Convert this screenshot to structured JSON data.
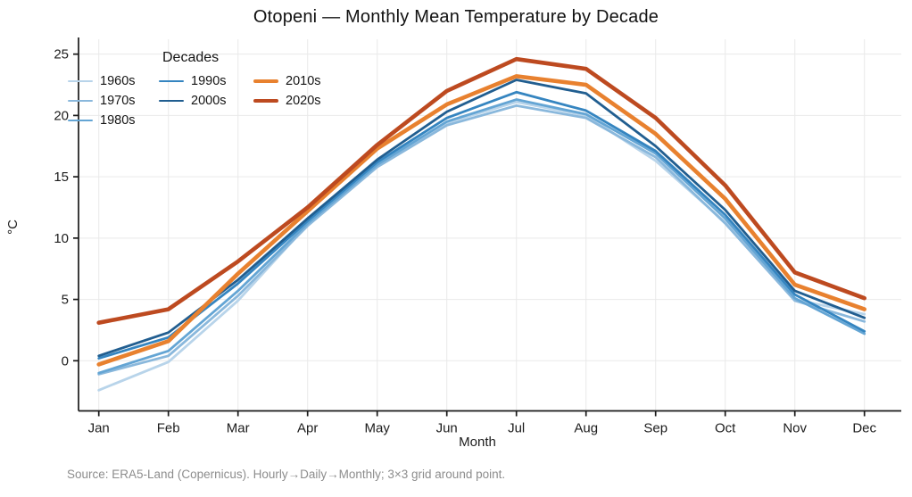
{
  "chart_data": {
    "type": "line",
    "title": "Otopeni — Monthly Mean Temperature by Decade",
    "xlabel": "Month",
    "ylabel": "°C",
    "categories": [
      "Jan",
      "Feb",
      "Mar",
      "Apr",
      "May",
      "Jun",
      "Jul",
      "Aug",
      "Sep",
      "Oct",
      "Nov",
      "Dec"
    ],
    "yticks": [
      0,
      5,
      10,
      15,
      20,
      25
    ],
    "ylim": [
      -4.1,
      26.2
    ],
    "grid": true,
    "legend_position": "upper-left-inside",
    "series": [
      {
        "name": "1960s",
        "color": "#b8d4ea",
        "width": 2.8,
        "values": [
          -2.4,
          -0.1,
          4.9,
          11.1,
          15.9,
          19.4,
          21.1,
          20.0,
          16.3,
          11.3,
          5.0,
          3.8
        ]
      },
      {
        "name": "1970s",
        "color": "#8ab8dc",
        "width": 2.8,
        "values": [
          -1.1,
          0.4,
          5.3,
          11.0,
          15.8,
          19.2,
          20.8,
          19.8,
          16.6,
          11.2,
          4.9,
          3.2
        ]
      },
      {
        "name": "1980s",
        "color": "#64a5d4",
        "width": 2.8,
        "values": [
          -1.0,
          0.8,
          5.7,
          11.2,
          16.0,
          19.5,
          21.3,
          20.1,
          16.9,
          11.6,
          5.1,
          2.2
        ]
      },
      {
        "name": "1990s",
        "color": "#3585c0",
        "width": 2.8,
        "values": [
          0.2,
          1.9,
          6.3,
          11.4,
          16.2,
          19.8,
          21.9,
          20.4,
          17.1,
          11.9,
          5.4,
          2.4
        ]
      },
      {
        "name": "2000s",
        "color": "#215e90",
        "width": 2.8,
        "values": [
          0.4,
          2.3,
          6.6,
          11.6,
          16.4,
          20.3,
          22.9,
          21.8,
          17.5,
          12.3,
          5.7,
          3.5
        ]
      },
      {
        "name": "2010s",
        "color": "#e8812f",
        "width": 4.6,
        "values": [
          -0.3,
          1.6,
          7.1,
          12.2,
          17.3,
          20.9,
          23.2,
          22.5,
          18.5,
          13.2,
          6.2,
          4.2
        ]
      },
      {
        "name": "2020s",
        "color": "#bd4a20",
        "width": 4.6,
        "values": [
          3.1,
          4.2,
          8.1,
          12.5,
          17.6,
          22.0,
          24.6,
          23.8,
          19.8,
          14.3,
          7.2,
          5.1
        ]
      }
    ]
  },
  "legend": {
    "title": "Decades",
    "column_groups": [
      [
        0,
        1,
        2
      ],
      [
        3,
        4
      ],
      [
        5,
        6
      ]
    ]
  },
  "footer": {
    "source_text": "Source: ERA5-Land (Copernicus). Hourly→Daily→Monthly; 3×3 grid around point."
  }
}
